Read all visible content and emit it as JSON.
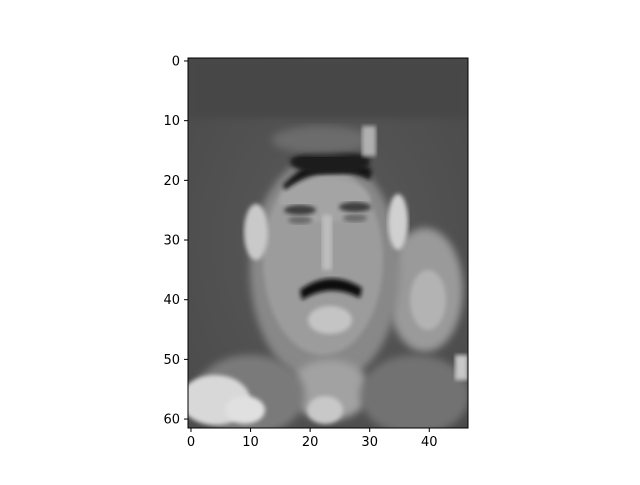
{
  "chart_data": {
    "type": "heatmap",
    "colormap": "gray",
    "image_shape": [
      62,
      47
    ],
    "xlim": [
      -0.5,
      46.5
    ],
    "ylim": [
      61.5,
      -0.5
    ],
    "x_ticks": [
      0,
      10,
      20,
      30,
      40
    ],
    "x_tick_labels": [
      "0",
      "10",
      "20",
      "30",
      "40"
    ],
    "y_ticks": [
      0,
      10,
      20,
      30,
      40,
      50,
      60
    ],
    "y_tick_labels": [
      "0",
      "10",
      "20",
      "30",
      "40",
      "50",
      "60"
    ],
    "grid": false,
    "legend": "none",
    "title": "",
    "xlabel": "",
    "ylabel": ""
  }
}
